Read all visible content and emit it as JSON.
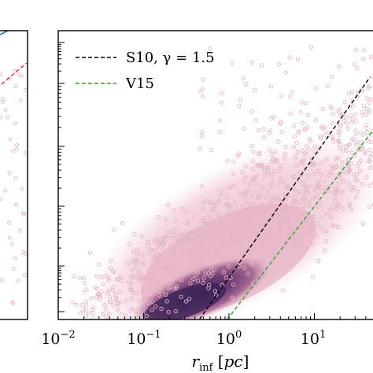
{
  "chart_data": [
    {
      "type": "scatter",
      "panel": "left",
      "xscale": "log",
      "yscale": "log",
      "series": [
        {
          "color": "#1f77b4",
          "style": "solid",
          "x": [],
          "y": []
        },
        {
          "color": "#d62728",
          "style": "dashed",
          "x": [],
          "y": []
        }
      ],
      "tick_labels_x": [],
      "tick_labels_y": []
    },
    {
      "type": "scatter",
      "panel": "right",
      "xscale": "log",
      "yscale": "log",
      "xlim": [
        0.01,
        60
      ],
      "xlabel_parts": {
        "var": "r",
        "sub": "inf",
        "unit": "pc"
      },
      "x_ticks": [
        {
          "base": "10",
          "exp": "−2",
          "value": 0.01
        },
        {
          "base": "10",
          "exp": "−1",
          "value": 0.1
        },
        {
          "base": "10",
          "exp": "0",
          "value": 1
        },
        {
          "base": "10",
          "exp": "1",
          "value": 10
        }
      ],
      "legend": {
        "placement": "top-left",
        "entries": [
          {
            "label": "S10, γ = 1.5",
            "color": "#000000",
            "style": "dashed"
          },
          {
            "label": "V15",
            "color": "#2ca02c",
            "style": "dashed"
          }
        ]
      },
      "series": [
        {
          "name": "S10, γ = 1.5",
          "color": "#000000",
          "style": "dashed",
          "x": [
            0.45,
            45
          ],
          "y_frac": [
            0.0,
            0.84
          ]
        },
        {
          "name": "V15",
          "color": "#2ca02c",
          "style": "dashed",
          "x": [
            0.95,
            60
          ],
          "y_frac": [
            0.0,
            0.69
          ]
        }
      ],
      "density": {
        "scatter_color": "#e3b6c4",
        "core_colors": [
          "#f4d9e1",
          "#d8a7bb",
          "#a86b94",
          "#6f3f77",
          "#3d2457"
        ]
      }
    }
  ]
}
